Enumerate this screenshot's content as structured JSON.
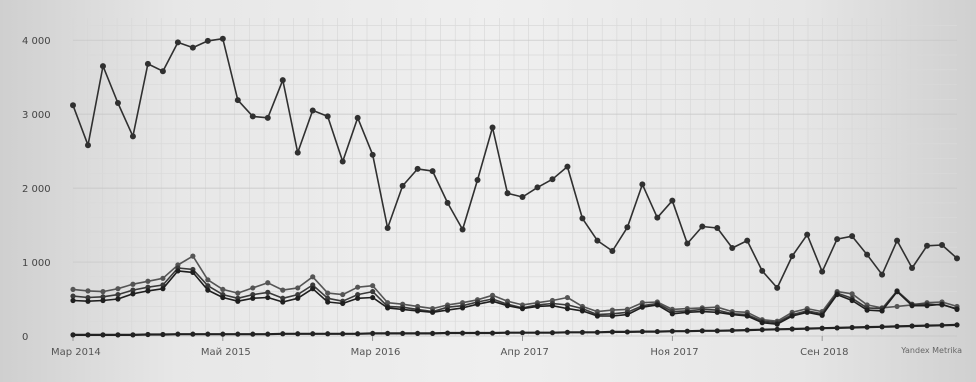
{
  "chart_data": {
    "type": "line",
    "title": "",
    "xlabel": "",
    "ylabel": "",
    "ylim": [
      0,
      4300
    ],
    "y_ticks": [
      0,
      1000,
      2000,
      3000,
      4000
    ],
    "y_tick_labels": [
      "0",
      "1 000",
      "2 000",
      "3 000",
      "4 000"
    ],
    "x_tick_labels": [
      {
        "index": 0,
        "label": "Мар 2014"
      },
      {
        "index": 10,
        "label": "Май 2015"
      },
      {
        "index": 20,
        "label": "Мар 2016"
      },
      {
        "index": 30,
        "label": "Апр 2017"
      },
      {
        "index": 40,
        "label": "Ноя 2017"
      },
      {
        "index": 50,
        "label": "Сен 2018"
      }
    ],
    "grid": true,
    "source_label": "Yandex Metrika",
    "series": [
      {
        "color": "#303030",
        "values": [
          3120,
          2580,
          3650,
          3150,
          2700,
          3680,
          3580,
          3970,
          3900,
          3990,
          4020,
          3190,
          2970,
          2950,
          3460,
          2480,
          3050,
          2970,
          2360,
          2950,
          2450,
          1460,
          2030,
          2260,
          2230,
          1800,
          1440,
          2110,
          2820,
          1930,
          1880,
          2010,
          2120,
          2290,
          1590,
          1290,
          1150,
          1470,
          2050,
          1600,
          1830,
          1250,
          1480,
          1460,
          1190,
          1290,
          880,
          650,
          1080,
          1370,
          870,
          1310,
          1350,
          1100,
          830,
          1290,
          920,
          1220,
          1230,
          1050
        ]
      },
      {
        "color": "#555555",
        "values": [
          630,
          610,
          600,
          640,
          700,
          740,
          780,
          960,
          1080,
          760,
          630,
          580,
          650,
          720,
          620,
          650,
          800,
          580,
          560,
          660,
          680,
          450,
          430,
          400,
          370,
          420,
          450,
          490,
          550,
          470,
          420,
          450,
          480,
          520,
          400,
          330,
          350,
          360,
          450,
          460,
          360,
          370,
          380,
          390,
          330,
          320,
          220,
          200,
          320,
          370,
          330,
          600,
          570,
          420,
          380,
          400,
          420,
          450,
          460,
          400
        ]
      },
      {
        "color": "#3a3a3a",
        "values": [
          540,
          520,
          530,
          560,
          620,
          660,
          690,
          920,
          900,
          680,
          560,
          510,
          560,
          590,
          510,
          560,
          690,
          510,
          470,
          560,
          600,
          400,
          390,
          360,
          330,
          390,
          410,
          460,
          500,
          430,
          380,
          420,
          440,
          420,
          370,
          290,
          300,
          320,
          410,
          440,
          330,
          340,
          360,
          350,
          300,
          290,
          200,
          180,
          290,
          340,
          300,
          580,
          510,
          380,
          370,
          610,
          430,
          430,
          420,
          370
        ]
      },
      {
        "color": "#1f1f1f",
        "values": [
          480,
          470,
          480,
          500,
          570,
          610,
          640,
          880,
          860,
          620,
          520,
          470,
          510,
          520,
          460,
          510,
          640,
          460,
          440,
          510,
          520,
          380,
          360,
          340,
          320,
          350,
          380,
          430,
          470,
          410,
          370,
          400,
          410,
          370,
          340,
          270,
          270,
          290,
          390,
          420,
          300,
          320,
          330,
          320,
          290,
          270,
          180,
          160,
          270,
          320,
          280,
          560,
          480,
          350,
          340,
          600,
          410,
          410,
          430,
          360
        ]
      },
      {
        "color": "#222222",
        "values": [
          15,
          15,
          15,
          15,
          15,
          20,
          20,
          25,
          25,
          25,
          25,
          25,
          25,
          25,
          30,
          30,
          30,
          30,
          30,
          30,
          35,
          35,
          35,
          35,
          35,
          40,
          40,
          40,
          40,
          45,
          45,
          45,
          45,
          50,
          50,
          50,
          55,
          55,
          60,
          60,
          65,
          65,
          70,
          70,
          75,
          80,
          85,
          90,
          95,
          100,
          105,
          110,
          115,
          120,
          125,
          130,
          135,
          140,
          145,
          150
        ]
      }
    ]
  }
}
